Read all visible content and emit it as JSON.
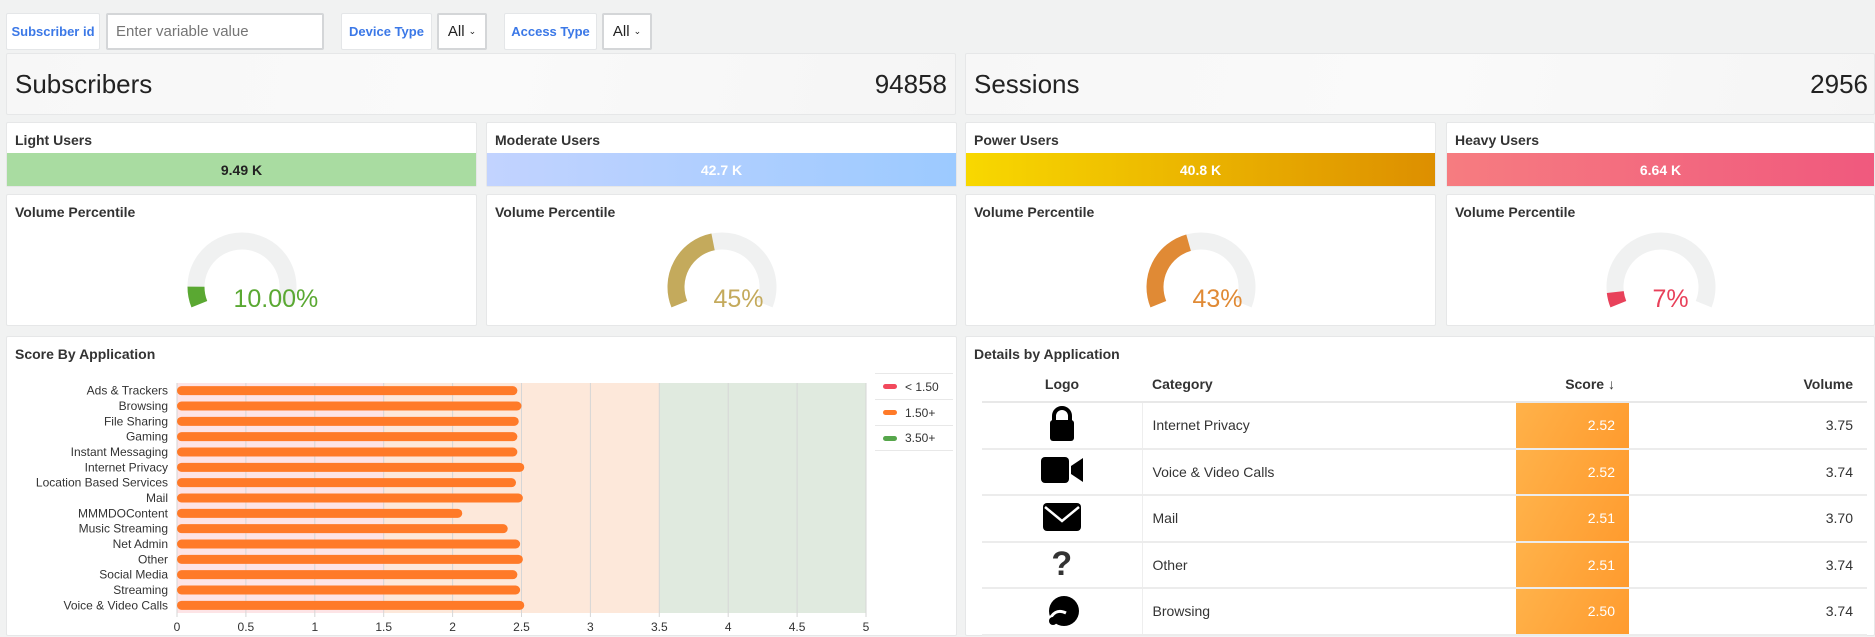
{
  "filters": {
    "subscriber_label": "Subscriber id",
    "subscriber_placeholder": "Enter variable value",
    "device_label": "Device Type",
    "device_value": "All",
    "access_label": "Access Type",
    "access_value": "All"
  },
  "stats": {
    "subscribers": {
      "label": "Subscribers",
      "value": "94858"
    },
    "sessions": {
      "label": "Sessions",
      "value": "2956"
    }
  },
  "user_groups": [
    {
      "label": "Light Users",
      "value": "9.49 K",
      "color": "#a9dca1"
    },
    {
      "label": "Moderate Users",
      "value": "42.7 K",
      "color": "#a9cbff"
    },
    {
      "label": "Power Users",
      "value": "40.8 K",
      "color": "#eeb200"
    },
    {
      "label": "Heavy Users",
      "value": "6.64 K",
      "color": "#f26b80"
    }
  ],
  "gauges": [
    {
      "title": "Volume Percentile",
      "text": "10.00%",
      "percent": 10,
      "color": "#5aa832"
    },
    {
      "title": "Volume Percentile",
      "text": "45%",
      "percent": 45,
      "color": "#c4aa5c"
    },
    {
      "title": "Volume Percentile",
      "text": "43%",
      "percent": 43,
      "color": "#e08a35"
    },
    {
      "title": "Volume Percentile",
      "text": "7%",
      "percent": 7,
      "color": "#e8415a"
    }
  ],
  "score_chart": {
    "title": "Score By Application",
    "chart_data": {
      "type": "bar",
      "orientation": "horizontal",
      "categories": [
        "Ads & Trackers",
        "Browsing",
        "File Sharing",
        "Gaming",
        "Instant Messaging",
        "Internet Privacy",
        "Location Based Services",
        "Mail",
        "MMMDOContent",
        "Music Streaming",
        "Net Admin",
        "Other",
        "Social Media",
        "Streaming",
        "Voice & Video Calls"
      ],
      "values": [
        2.47,
        2.5,
        2.48,
        2.47,
        2.47,
        2.52,
        2.46,
        2.51,
        2.07,
        2.4,
        2.49,
        2.51,
        2.47,
        2.49,
        2.52
      ],
      "xlim": [
        0,
        5
      ],
      "xticks": [
        "0",
        "0.5",
        "1",
        "1.5",
        "2",
        "2.5",
        "3",
        "3.5",
        "4",
        "4.5",
        "5"
      ],
      "bar_color": "#ff7a28",
      "thresholds": [
        {
          "from": 0,
          "to": 1.5,
          "color": "#fde4e6"
        },
        {
          "from": 1.5,
          "to": 3.5,
          "color": "#fde8da"
        },
        {
          "from": 3.5,
          "to": 5,
          "color": "#e0eadf"
        }
      ],
      "grid": true,
      "legend": {
        "placement": "right",
        "items": [
          {
            "label": "< 1.50",
            "color": "#f2495c"
          },
          {
            "label": "1.50+",
            "color": "#ff7a28"
          },
          {
            "label": "3.50+",
            "color": "#56a64b"
          }
        ]
      }
    }
  },
  "details": {
    "title": "Details by Application",
    "columns": {
      "logo": "Logo",
      "category": "Category",
      "score": "Score",
      "volume": "Volume"
    },
    "sort_icon": "arrow-down-icon",
    "rows": [
      {
        "icon": "lock-icon",
        "category": "Internet Privacy",
        "score": "2.52",
        "volume": "3.75"
      },
      {
        "icon": "video-camera-icon",
        "category": "Voice & Video Calls",
        "score": "2.52",
        "volume": "3.74"
      },
      {
        "icon": "envelope-icon",
        "category": "Mail",
        "score": "2.51",
        "volume": "3.70"
      },
      {
        "icon": "question-icon",
        "category": "Other",
        "score": "2.51",
        "volume": "3.74"
      },
      {
        "icon": "browsing-icon",
        "category": "Browsing",
        "score": "2.50",
        "volume": "3.74"
      }
    ]
  }
}
